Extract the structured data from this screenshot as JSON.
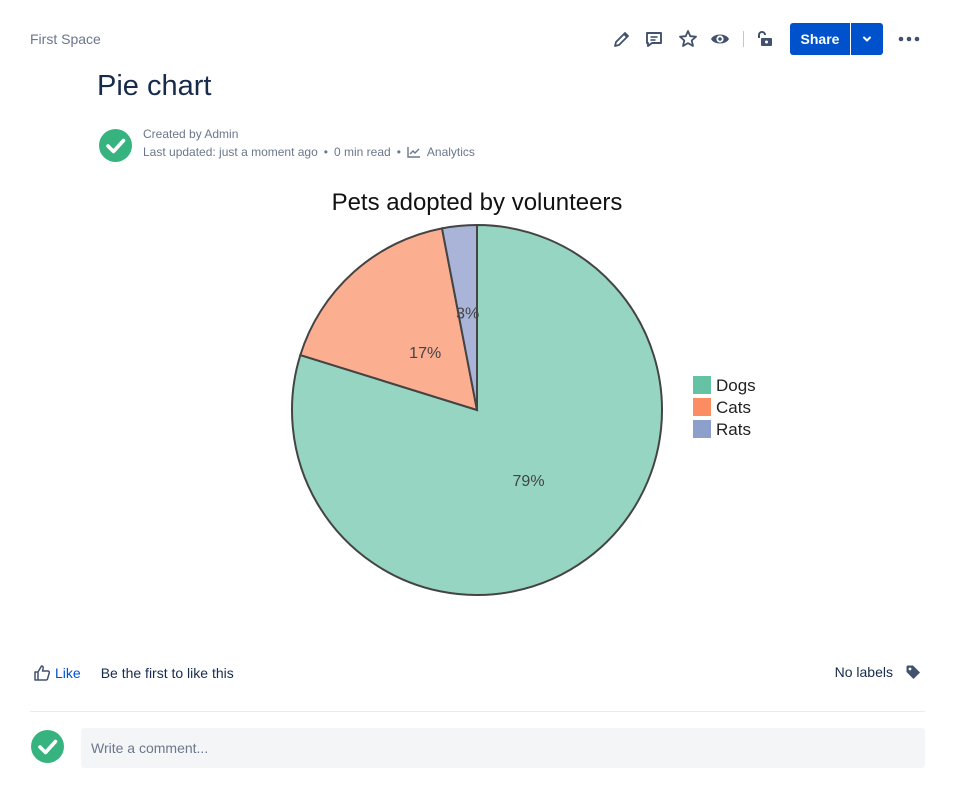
{
  "breadcrumb": "First Space",
  "toolbar": {
    "icons": [
      "edit-icon",
      "comment-icon",
      "star-icon",
      "watch-icon",
      "restrictions-icon"
    ],
    "share_label": "Share",
    "more_icon": "more-icon"
  },
  "page": {
    "title": "Pie chart",
    "created_by": "Created by Admin",
    "last_updated": "Last updated: just a moment ago",
    "read_time": "0 min read",
    "analytics_label": "Analytics"
  },
  "chart_data": {
    "type": "pie",
    "title": "Pets adopted by volunteers",
    "categories": [
      "Dogs",
      "Cats",
      "Rats"
    ],
    "values": [
      79,
      17,
      3
    ],
    "labels": [
      "79%",
      "17%",
      "3%"
    ],
    "colors": [
      "#96d5c1",
      "#fcae91",
      "#aab4d8"
    ],
    "legend_colors": [
      "#66c2a5",
      "#fc8d62",
      "#8da0cb"
    ],
    "legend": "right"
  },
  "footer": {
    "like_label": "Like",
    "like_text": "Be the first to like this",
    "labels_text": "No labels"
  },
  "comment": {
    "placeholder": "Write a comment..."
  },
  "colors": {
    "accent": "#0052cc",
    "avatar": "#36b37e"
  }
}
